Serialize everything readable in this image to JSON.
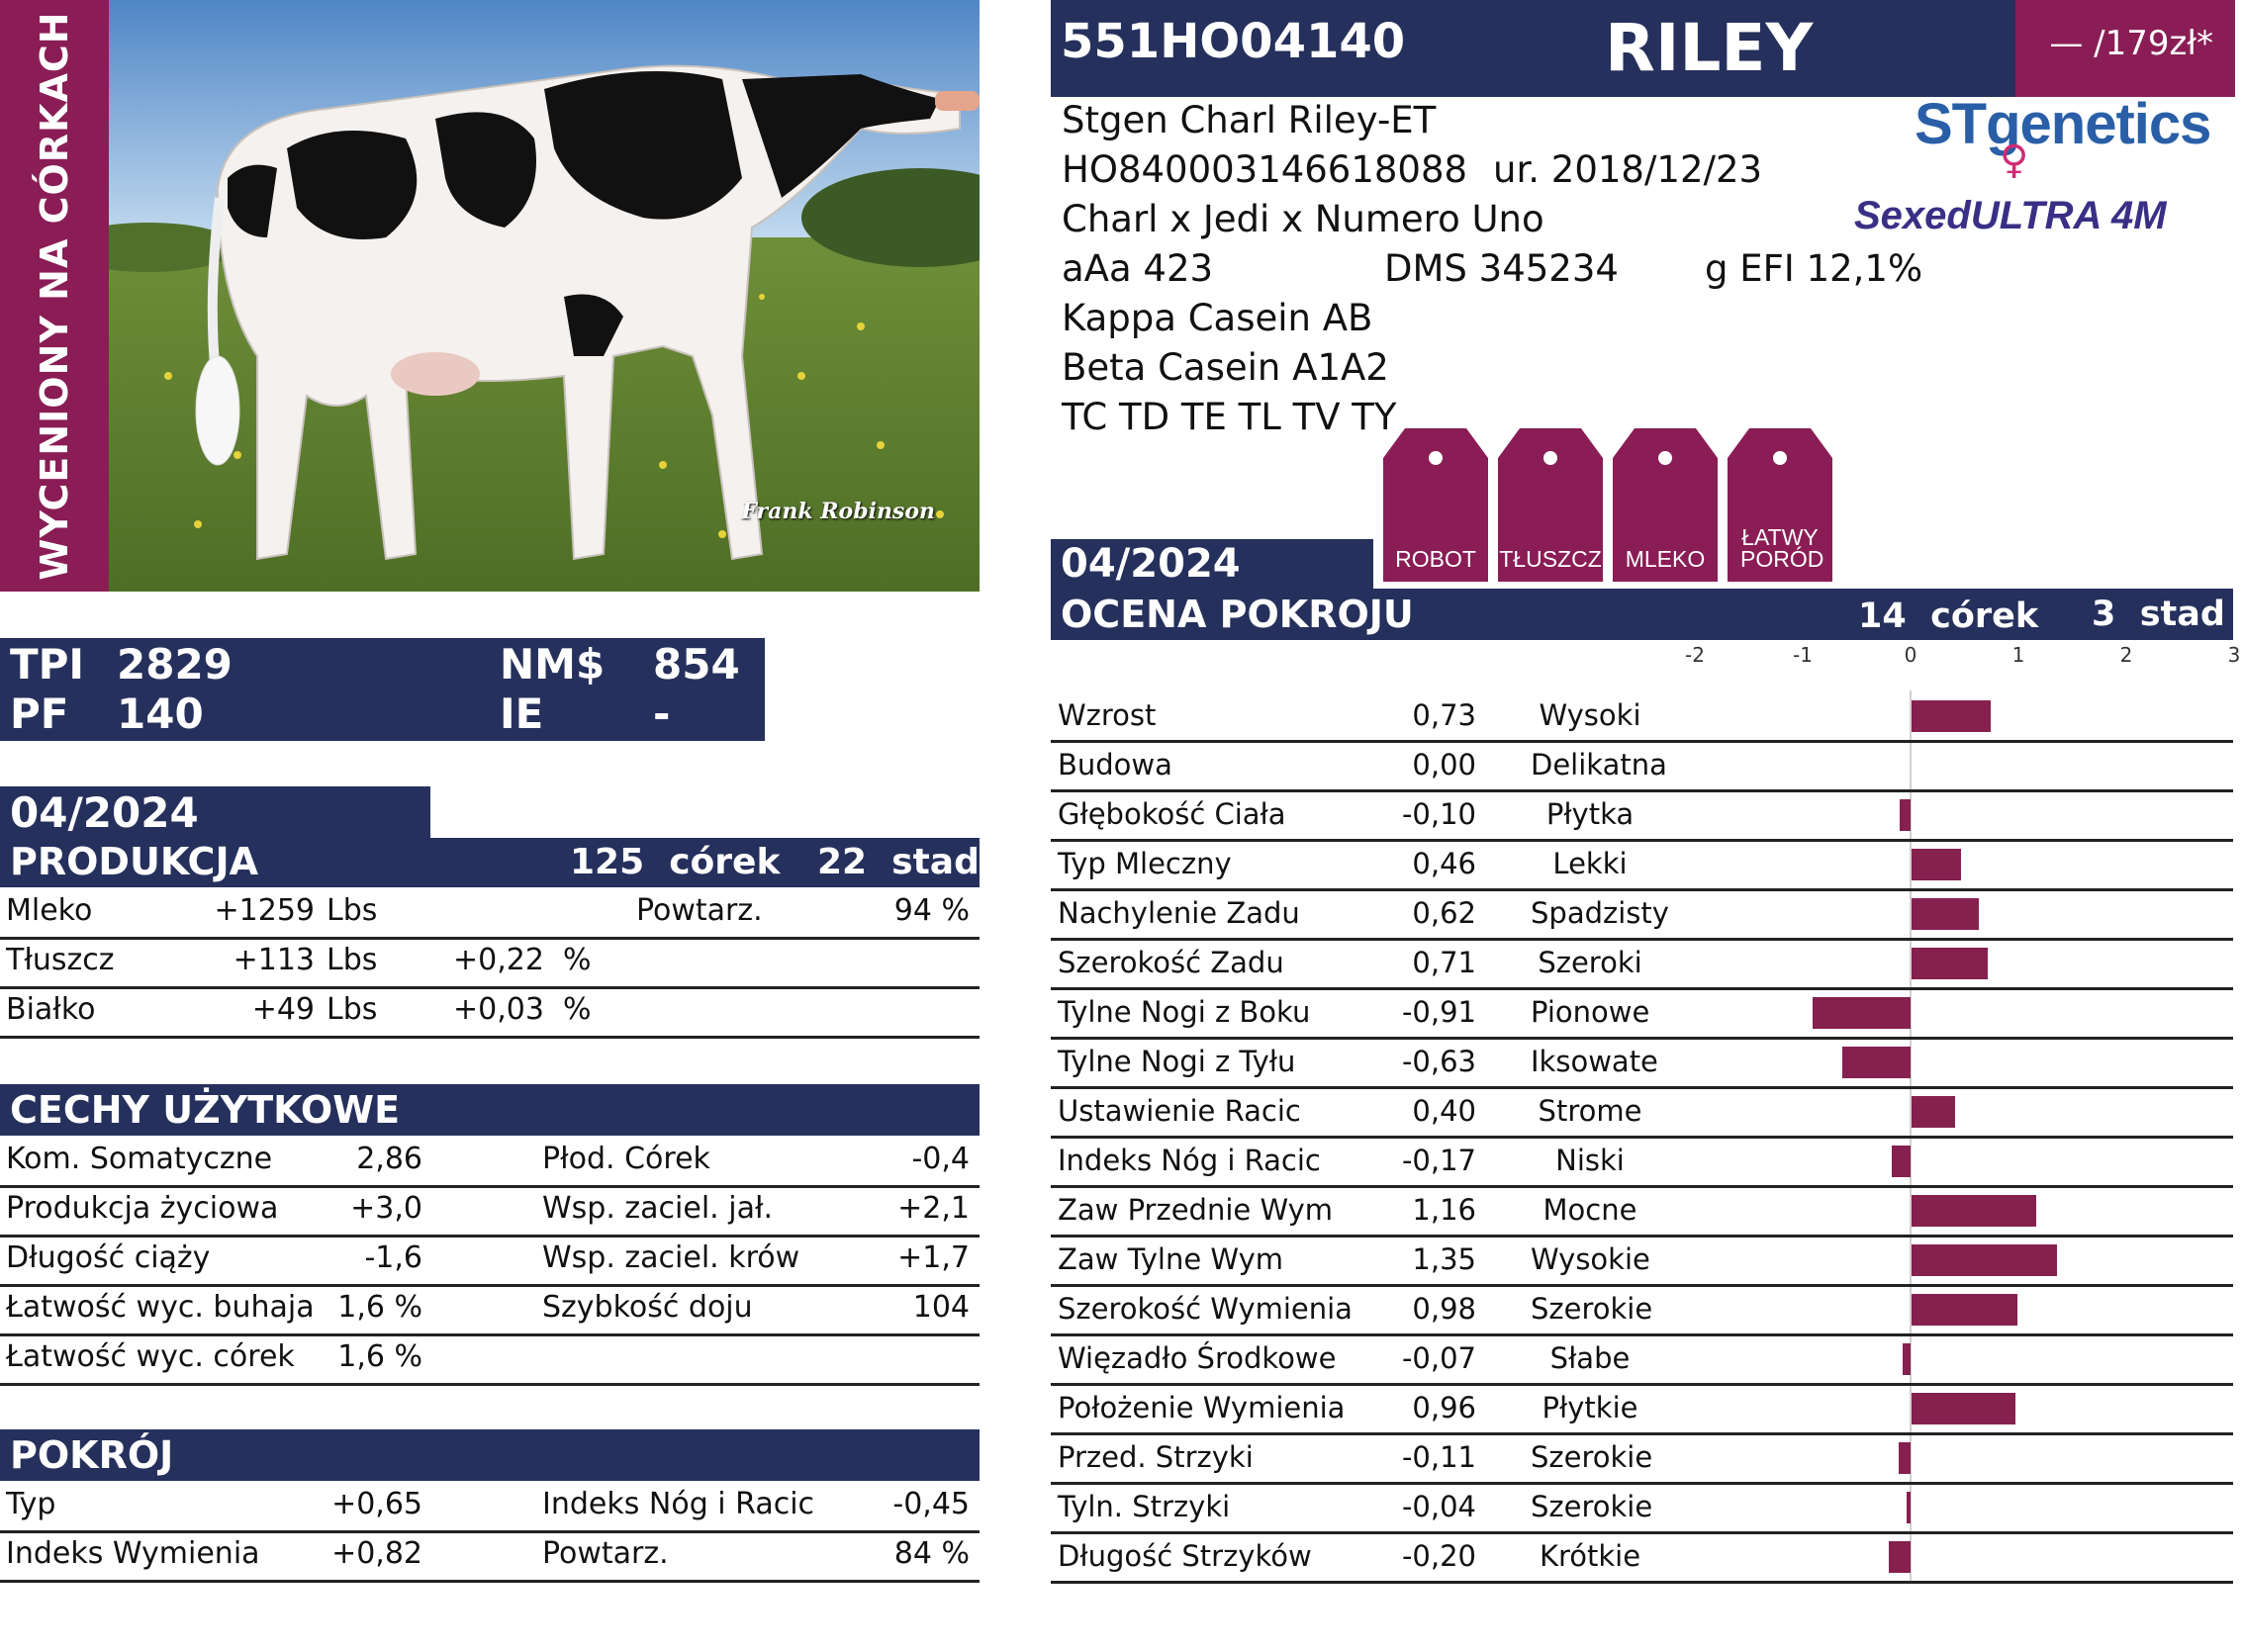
{
  "side_banner": "WYCENIONY NA CÓRKACH",
  "photo_credit": "Frank Robinson",
  "header": {
    "code": "551HO04140",
    "name": "RILEY",
    "price": "— /179zł*"
  },
  "info": {
    "full_name": "Stgen Charl Riley-ET",
    "reg_number": "HO840003146618088",
    "born": "ur. 2018/12/23",
    "pedigree": "Charl x Jedi x Numero Uno",
    "aaa": "aAa 423",
    "dms": "DMS 345234",
    "efi": "g EFI 12,1%",
    "kappa": "Kappa Casein AB",
    "beta": "Beta Casein A1A2",
    "codes": "TC TD TE TL TV TY"
  },
  "logos": {
    "stgenetics": "STgenetics",
    "sexed": "SexedULTRA 4M"
  },
  "tags": [
    "ROBOT",
    "TŁUSZCZ",
    "MLEKO",
    "ŁATWY PORÓD"
  ],
  "indices": {
    "tpi_label": "TPI",
    "tpi": "2829",
    "nm_label": "NM$",
    "nm": "854",
    "pf_label": "PF",
    "pf": "140",
    "ie_label": "IE",
    "ie": "-"
  },
  "production": {
    "date": "04/2024",
    "title": "PRODUKCJA",
    "daughters": "125  córek",
    "herds": "22  stad",
    "rows": [
      {
        "label": "Mleko",
        "value": "+1259",
        "unit": "Lbs",
        "pct": "",
        "extra_label": "Powtarz.",
        "extra_value": "94 %"
      },
      {
        "label": "Tłuszcz",
        "value": "+113",
        "unit": "Lbs",
        "pct": "+0,22  %",
        "extra_label": "",
        "extra_value": ""
      },
      {
        "label": "Białko",
        "value": "+49",
        "unit": "Lbs",
        "pct": "+0,03  %",
        "extra_label": "",
        "extra_value": ""
      }
    ]
  },
  "functional": {
    "title": "CECHY UŻYTKOWE",
    "rows": [
      {
        "l1": "Kom. Somatyczne",
        "v1": "2,86",
        "l2": "Płod. Córek",
        "v2": "-0,4"
      },
      {
        "l1": "Produkcja życiowa",
        "v1": "+3,0",
        "l2": "Wsp. zaciel. jał.",
        "v2": "+2,1"
      },
      {
        "l1": "Długość ciąży",
        "v1": "-1,6",
        "l2": "Wsp. zaciel. krów",
        "v2": "+1,7"
      },
      {
        "l1": "Łatwość wyc. buhaja",
        "v1": "1,6 %",
        "l2": "Szybkość doju",
        "v2": "104"
      },
      {
        "l1": "Łatwość wyc. córek",
        "v1": "1,6 %",
        "l2": "",
        "v2": ""
      }
    ]
  },
  "type_summary": {
    "title": "POKRÓJ",
    "rows": [
      {
        "l1": "Typ",
        "v1": "+0,65",
        "l2": "Indeks Nóg i Racic",
        "v2": "-0,45"
      },
      {
        "l1": "Indeks Wymienia",
        "v1": "+0,82",
        "l2": "Powtarz.",
        "v2": "84 %"
      }
    ]
  },
  "conformation": {
    "date": "04/2024",
    "title": "OCENA POKROJU",
    "daughters": "14  córek",
    "herds": "3  stad"
  },
  "chart_data": {
    "type": "bar",
    "orientation": "horizontal",
    "xlim": [
      -2,
      3
    ],
    "ticks": [
      "-2",
      "-1",
      "0",
      "1",
      "2",
      "3"
    ],
    "color": "#86204f",
    "categories": [
      "Wzrost",
      "Budowa",
      "Głębokość Ciała",
      "Typ Mleczny",
      "Nachylenie Zadu",
      "Szerokość Zadu",
      "Tylne Nogi z Boku",
      "Tylne Nogi z Tyłu",
      "Ustawienie Racic",
      "Indeks Nóg i Racic",
      "Zaw Przednie Wym",
      "Zaw Tylne Wym",
      "Szerokość Wymienia",
      "Więzadło Środkowe",
      "Położenie Wymienia",
      "Przed. Strzyki",
      "Tyln. Strzyki",
      "Długość Strzyków"
    ],
    "values": [
      0.73,
      0.0,
      -0.1,
      0.46,
      0.62,
      0.71,
      -0.91,
      -0.63,
      0.4,
      -0.17,
      1.16,
      1.35,
      0.98,
      -0.07,
      0.96,
      -0.11,
      -0.04,
      -0.2
    ],
    "value_labels": [
      "0,73",
      "0,00",
      "-0,10",
      "0,46",
      "0,62",
      "0,71",
      "-0,91",
      "-0,63",
      "0,40",
      "-0,17",
      "1,16",
      "1,35",
      "0,98",
      "-0,07",
      "0,96",
      "-0,11",
      "-0,04",
      "-0,20"
    ],
    "descriptors": [
      "Wysoki",
      "Delikatna",
      "Płytka",
      "Lekki",
      "Spadzisty",
      "Szeroki",
      "Pionowe",
      "Iksowate",
      "Strome",
      "Niski",
      "Mocne",
      "Wysokie",
      "Szerokie",
      "Słabe",
      "Płytkie",
      "Szerokie",
      "Szerokie",
      "Krótkie"
    ]
  }
}
